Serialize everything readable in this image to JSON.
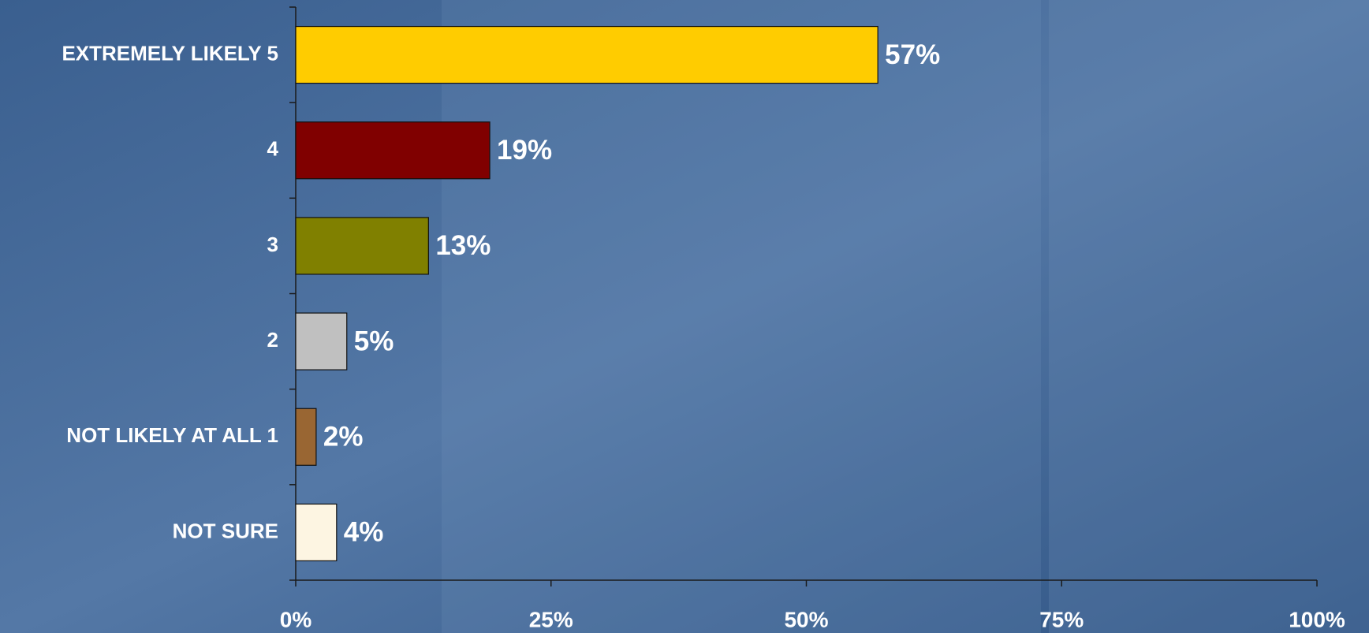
{
  "chart_data": {
    "type": "bar",
    "orientation": "horizontal",
    "categories": [
      "EXTREMELY LIKELY 5",
      "4",
      "3",
      "2",
      "NOT LIKELY AT ALL 1",
      "NOT SURE"
    ],
    "values": [
      57,
      19,
      13,
      5,
      2,
      4
    ],
    "value_labels": [
      "57%",
      "19%",
      "13%",
      "5%",
      "2%",
      "4%"
    ],
    "colors": [
      "#ffcc00",
      "#800000",
      "#808000",
      "#c0c0c0",
      "#996633",
      "#fdf5e2"
    ],
    "xlim": [
      0,
      100
    ],
    "xticks": [
      {
        "value": 0,
        "label": "0%"
      },
      {
        "value": 25,
        "label": "25%"
      },
      {
        "value": 50,
        "label": "50%"
      },
      {
        "value": 75,
        "label": "75%"
      },
      {
        "value": 100,
        "label": "100%"
      }
    ],
    "grid": false
  }
}
